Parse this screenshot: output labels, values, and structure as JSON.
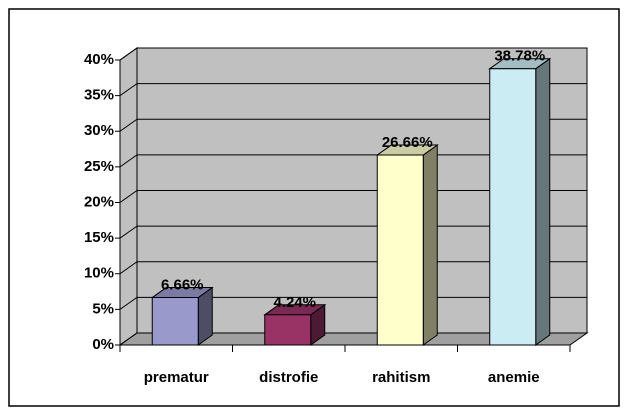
{
  "chart_data": {
    "type": "bar3d",
    "categories": [
      "prematur",
      "distrofie",
      "rahitism",
      "anemie"
    ],
    "values": [
      6.66,
      4.24,
      26.66,
      38.78
    ],
    "value_labels": [
      "6.66%",
      "4.24%",
      "26.66%",
      "38.78%"
    ],
    "colors": [
      "#9999cc",
      "#993366",
      "#ffffcc",
      "#ccecf4"
    ],
    "ylim": [
      0,
      40
    ],
    "yticks": [
      {
        "value": 0,
        "label": "0%"
      },
      {
        "value": 5,
        "label": "5%"
      },
      {
        "value": 10,
        "label": "10%"
      },
      {
        "value": 15,
        "label": "15%"
      },
      {
        "value": 20,
        "label": "20%"
      },
      {
        "value": 25,
        "label": "25%"
      },
      {
        "value": 30,
        "label": "30%"
      },
      {
        "value": 35,
        "label": "35%"
      },
      {
        "value": 40,
        "label": "40%"
      }
    ],
    "grid": true
  }
}
